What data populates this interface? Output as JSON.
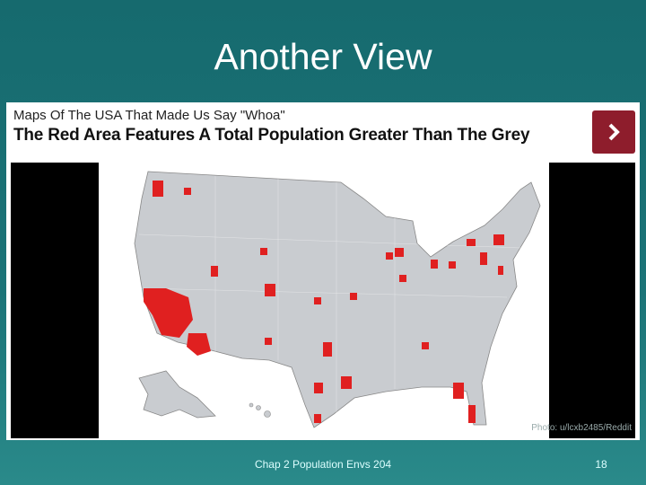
{
  "slide": {
    "title": "Another View",
    "footer": "Chap 2 Population Envs 204",
    "page_number": "18"
  },
  "embed": {
    "source_title": "Maps Of The USA That Made Us Say \"Whoa\"",
    "headline": "The Red Area Features A Total Population Greater Than The Grey",
    "credit": "Photo: u/lcxb2485/Reddit"
  }
}
